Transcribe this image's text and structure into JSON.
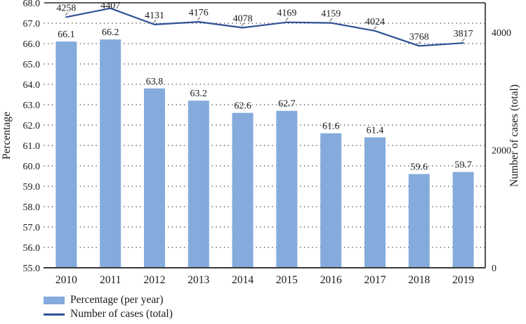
{
  "figure": {
    "background_color": "#ffffff",
    "text_color": "#1a1a1a",
    "frame_color": "#262626",
    "grid_color": "#4d4d4d"
  },
  "chart_data": {
    "type": "bar+line combo",
    "categories": [
      "2010",
      "2011",
      "2012",
      "2013",
      "2014",
      "2015",
      "2016",
      "2017",
      "2018",
      "2019"
    ],
    "series": [
      {
        "name": "Percentage (per year)",
        "type": "bar",
        "axis": "left",
        "color": "#84ABDB",
        "values": [
          66.1,
          66.2,
          63.8,
          63.2,
          62.6,
          62.7,
          61.6,
          61.4,
          59.6,
          59.7
        ]
      },
      {
        "name": "Number of cases (total)",
        "type": "line",
        "axis": "right",
        "color": "#2E5395",
        "values": [
          4258,
          4407,
          4131,
          4176,
          4078,
          4169,
          4159,
          4024,
          3768,
          3817
        ]
      }
    ],
    "left_axis": {
      "label": "Percentage",
      "min": 55,
      "max": 68,
      "tick_step": 1,
      "tick_decimals": 1
    },
    "right_axis": {
      "label": "Number of cases (total)",
      "min": 0,
      "max": 4500,
      "ticks": [
        0,
        2000,
        4000
      ]
    },
    "grid": "dotted horizontal gridlines at each left-axis tick",
    "data_labels": "values shown above bars and above line points",
    "legend_position": "bottom-left"
  }
}
